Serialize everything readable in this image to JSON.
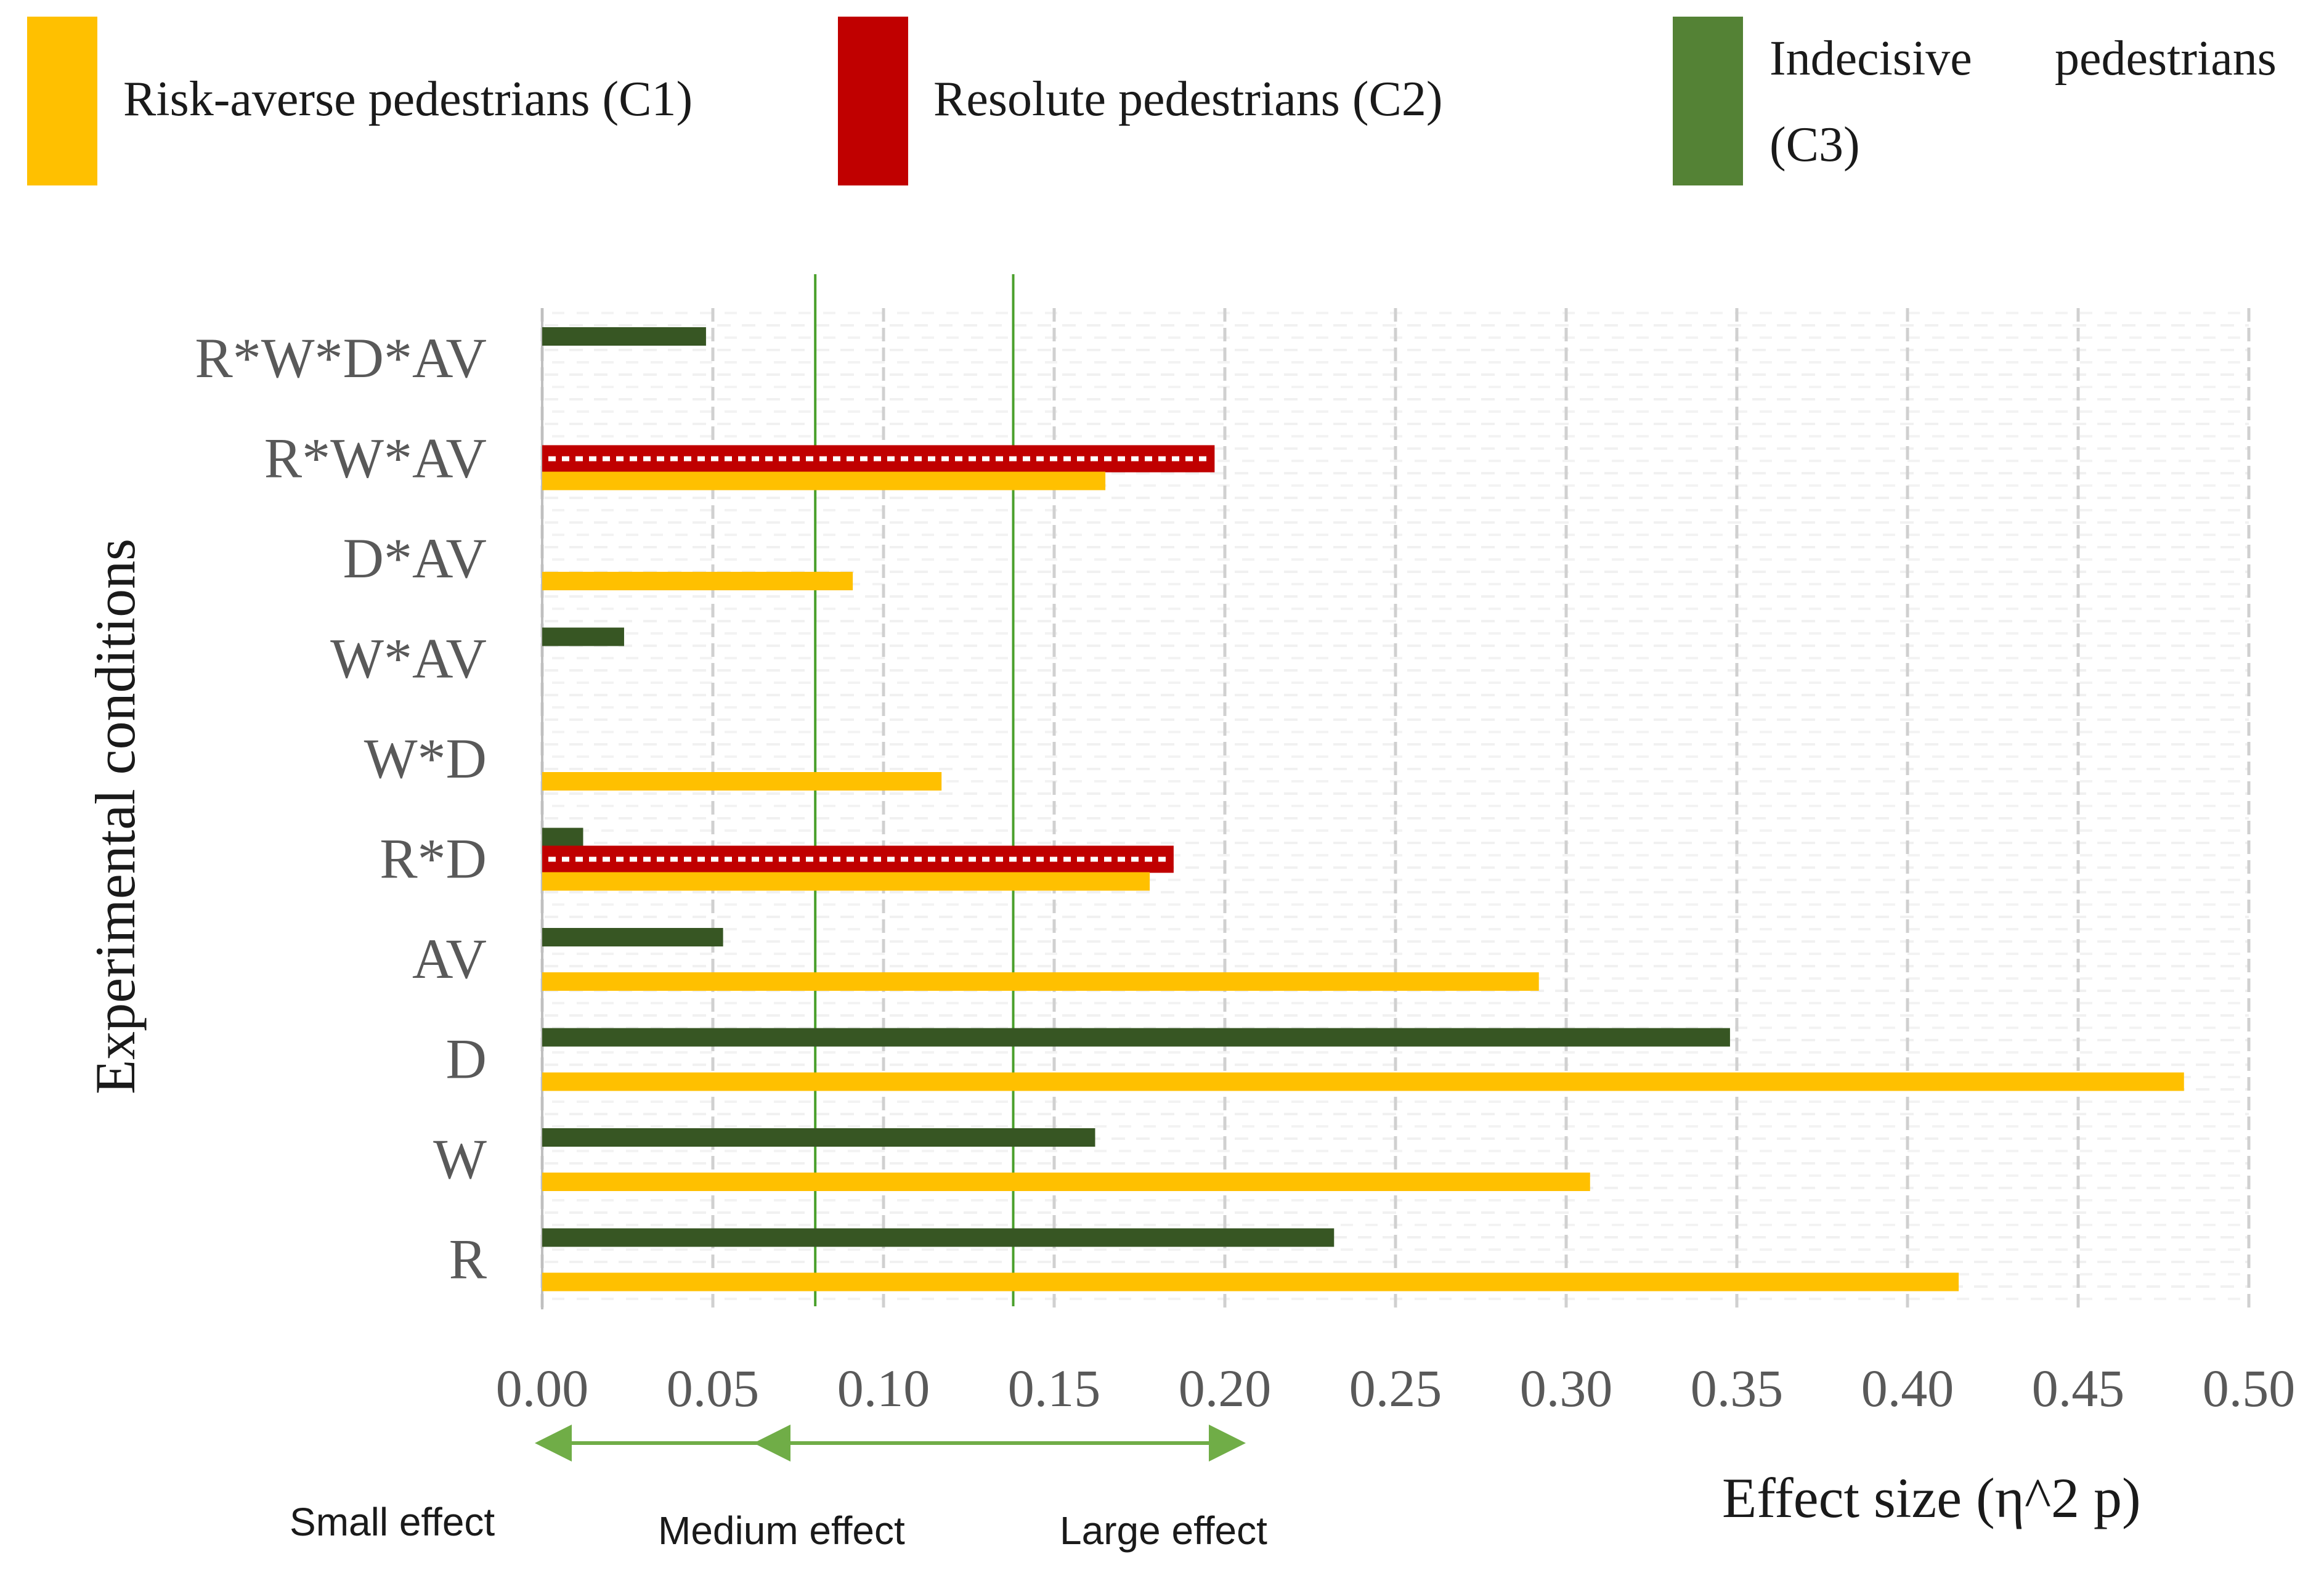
{
  "legend": [
    {
      "key": "c1",
      "label": "Risk-averse pedestrians (C1)",
      "color": "#FFC000"
    },
    {
      "key": "c2",
      "label": "Resolute pedestrians (C2)",
      "color": "#C00000"
    },
    {
      "key": "c3a",
      "label": "Indecisive",
      "color": "#548235"
    },
    {
      "key": "c3b",
      "label": "pedestrians"
    },
    {
      "key": "c3c",
      "label": "(C3)"
    }
  ],
  "chart_data": {
    "type": "bar",
    "orientation": "horizontal",
    "ylabel": "Experimental conditions",
    "xlabel": "Effect size (η^2 p)",
    "xlim": [
      0,
      0.5
    ],
    "xticks": [
      "0.00",
      "0.05",
      "0.10",
      "0.15",
      "0.20",
      "0.25",
      "0.30",
      "0.35",
      "0.40",
      "0.45",
      "0.50"
    ],
    "categories": [
      "R*W*D*AV",
      "R*W*AV",
      "D*AV",
      "W*AV",
      "W*D",
      "R*D",
      "AV",
      "D",
      "W",
      "R"
    ],
    "series": [
      {
        "name": "Indecisive pedestrians (C3)",
        "color": "#375623",
        "values": [
          0.048,
          null,
          null,
          0.024,
          null,
          0.012,
          0.053,
          0.348,
          0.162,
          0.232
        ]
      },
      {
        "name": "Resolute pedestrians (C2)",
        "color": "#C00000",
        "values": [
          null,
          0.197,
          null,
          null,
          null,
          0.185,
          null,
          null,
          null,
          null
        ]
      },
      {
        "name": "Risk-averse pedestrians (C1)",
        "color": "#FFC000",
        "values": [
          null,
          0.165,
          0.091,
          null,
          0.117,
          0.178,
          0.292,
          0.481,
          0.307,
          0.415
        ]
      }
    ],
    "reference_lines": [
      0.08,
      0.138
    ],
    "effect_labels": [
      "Small effect",
      "Medium effect",
      "Large effect"
    ]
  },
  "colors": {
    "grid": "#d0d0d0",
    "axis_text": "#595959",
    "reference": "#4aa02c",
    "arrow": "#70ad47"
  }
}
